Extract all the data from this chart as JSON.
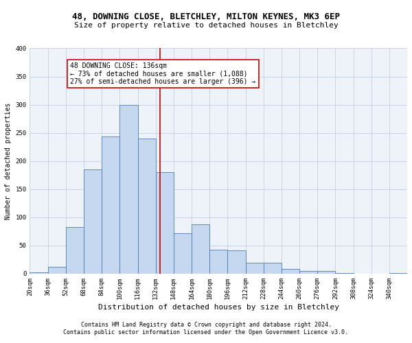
{
  "title1": "48, DOWNING CLOSE, BLETCHLEY, MILTON KEYNES, MK3 6EP",
  "title2": "Size of property relative to detached houses in Bletchley",
  "xlabel": "Distribution of detached houses by size in Bletchley",
  "ylabel": "Number of detached properties",
  "footnote1": "Contains HM Land Registry data © Crown copyright and database right 2024.",
  "footnote2": "Contains public sector information licensed under the Open Government Licence v3.0.",
  "bin_labels": [
    "20sqm",
    "36sqm",
    "52sqm",
    "68sqm",
    "84sqm",
    "100sqm",
    "116sqm",
    "132sqm",
    "148sqm",
    "164sqm",
    "180sqm",
    "196sqm",
    "212sqm",
    "228sqm",
    "244sqm",
    "260sqm",
    "276sqm",
    "292sqm",
    "308sqm",
    "324sqm",
    "340sqm"
  ],
  "bar_values": [
    3,
    12,
    83,
    185,
    243,
    300,
    240,
    180,
    72,
    88,
    43,
    42,
    19,
    19,
    9,
    5,
    5,
    1,
    0,
    0,
    1
  ],
  "bin_edges": [
    20,
    36,
    52,
    68,
    84,
    100,
    116,
    132,
    148,
    164,
    180,
    196,
    212,
    228,
    244,
    260,
    276,
    292,
    308,
    324,
    340,
    356
  ],
  "bar_color": "#c5d8f0",
  "bar_edge_color": "#4a7ab5",
  "property_size": 136,
  "vline_color": "#cc0000",
  "annotation_text": "48 DOWNING CLOSE: 136sqm\n← 73% of detached houses are smaller (1,088)\n27% of semi-detached houses are larger (396) →",
  "annotation_box_color": "#ffffff",
  "annotation_box_edge": "#cc0000",
  "ylim": [
    0,
    400
  ],
  "yticks": [
    0,
    50,
    100,
    150,
    200,
    250,
    300,
    350,
    400
  ],
  "grid_color": "#c8d4e8",
  "bg_color": "#eef2f9",
  "title_fontsize": 9,
  "subtitle_fontsize": 8,
  "xlabel_fontsize": 8,
  "ylabel_fontsize": 7,
  "tick_fontsize": 6.5,
  "annot_fontsize": 7,
  "footnote_fontsize": 6
}
